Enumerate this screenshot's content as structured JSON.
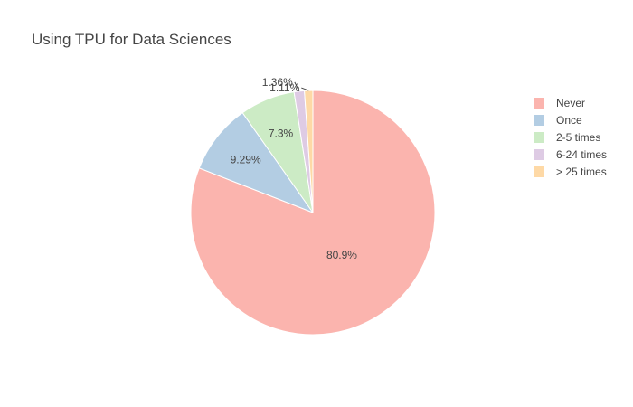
{
  "chart_data": {
    "type": "pie",
    "title": "Using TPU for Data Sciences",
    "series": [
      {
        "labels": [
          "Never",
          "Once",
          "2-5 times",
          "6-24 times",
          "> 25 times"
        ],
        "values": [
          80.9,
          9.29,
          7.3,
          1.36,
          1.11
        ],
        "value_labels": [
          "80.9%",
          "9.29%",
          "7.3%",
          "1.36%",
          "1.11%"
        ],
        "colors": [
          "#fbb4ae",
          "#b3cde3",
          "#ccebc5",
          "#decbe4",
          "#fed9a6"
        ]
      }
    ],
    "legend": {
      "placement": "right"
    },
    "direction": "clockwise",
    "start": "top"
  }
}
